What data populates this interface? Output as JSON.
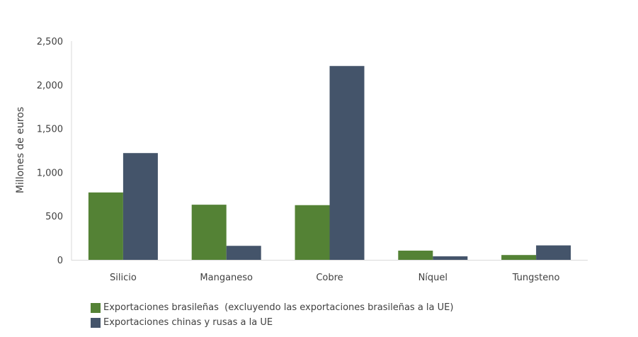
{
  "chart_data": {
    "type": "bar",
    "categories": [
      "Silicio",
      "Manganeso",
      "Cobre",
      "Níquel",
      "Tungsteno"
    ],
    "series": [
      {
        "name": "Exportaciones brasileñas  (excluyendo las exportaciones brasileñas a la UE)",
        "color": "#548235",
        "values": [
          770,
          630,
          625,
          105,
          55
        ]
      },
      {
        "name": "Exportaciones chinas y rusas a la UE",
        "color": "#44546a",
        "values": [
          1220,
          160,
          2215,
          40,
          165
        ]
      }
    ],
    "ylabel": "Millones de euros",
    "xlabel": "",
    "title": "",
    "ylim": [
      0,
      2500
    ],
    "yticks": [
      0,
      500,
      1000,
      1500,
      2000,
      2500
    ],
    "ytick_labels": [
      "0",
      "500",
      "1,000",
      "1,500",
      "2,000",
      "2,500"
    ],
    "grid": false,
    "legend_position": "bottom-left"
  }
}
